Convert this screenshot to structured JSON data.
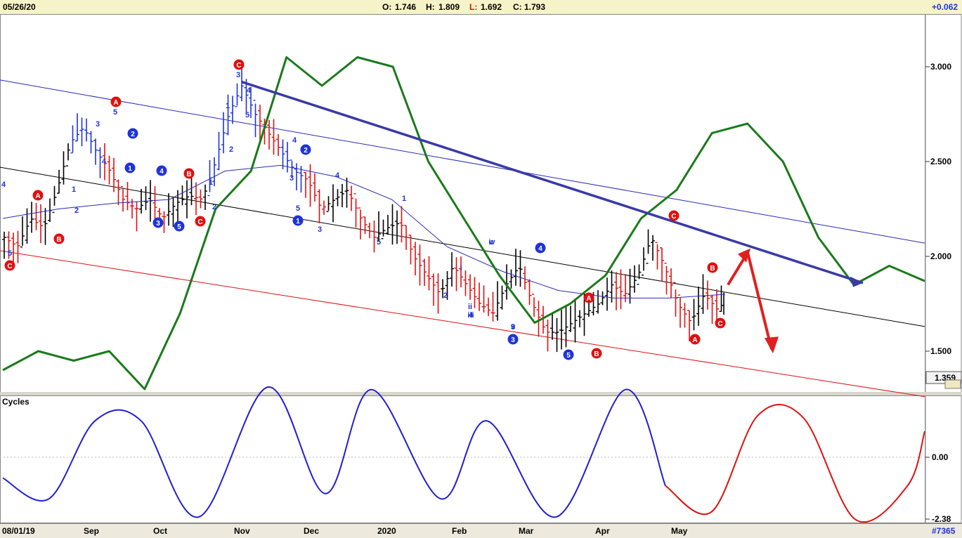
{
  "header": {
    "date": "05/26/20",
    "open_label": "O:",
    "open": "1.746",
    "high_label": "H:",
    "high": "1.809",
    "low_label": "L:",
    "low": "1.692",
    "close_label": "C:",
    "close": "1.793",
    "change": "+0.062"
  },
  "footer": {
    "start_date": "08/01/19",
    "months": [
      "Sep",
      "Oct",
      "Nov",
      "Dec",
      "2020",
      "Feb",
      "Mar",
      "Apr",
      "May"
    ],
    "chart_id": "#7365"
  },
  "colors": {
    "up_bars": "#000000",
    "down_bars": "#e01010",
    "wave_bars": "#1f33d9",
    "green_line": "#1a7a1a",
    "moving_average": "#2a2ab8",
    "channel_upper": "#2a2ab8",
    "channel_mid": "#000000",
    "channel_lower": "#e01010",
    "trend_arrow": "#3a3aa8",
    "forecast_arrows": "#e02020",
    "cycle_history": "#1f1fd0",
    "cycle_forecast": "#e01010",
    "wave_marker_blue": "#1f33d9",
    "wave_marker_red": "#e01010"
  },
  "price_panel": {
    "y_ticks": [
      "3.000",
      "2.500",
      "2.000",
      "1.500"
    ],
    "last_value_badge": "1.359"
  },
  "cycles_panel": {
    "title": "Cycles",
    "y_ticks": [
      "0.00",
      "-2.38"
    ]
  },
  "wave_labels": {
    "circle_red": [
      "C",
      "A",
      "B",
      "C",
      "A",
      "B",
      "C",
      "A",
      "B",
      "C",
      "B",
      "A",
      "C"
    ],
    "circle_blue": [
      "1",
      "2",
      "3",
      "4",
      "5",
      "1",
      "2",
      "3",
      "4",
      "5"
    ],
    "plain": [
      "4",
      "5",
      "1",
      "2",
      "3",
      "4",
      "5",
      "1",
      "2",
      "3",
      "4",
      "5",
      "1",
      "2",
      "3",
      "4",
      "5",
      "3",
      "4",
      "5",
      "1",
      "2",
      "i",
      "ii",
      "iii",
      "iv",
      "v",
      "v",
      "3",
      "4",
      "5"
    ]
  },
  "chart_data": [
    {
      "type": "ohlc",
      "y_axis_ticks": [
        3.0,
        2.5,
        2.0,
        1.5
      ],
      "ylim": [
        1.2,
        3.2
      ],
      "x_axis_labels": [
        "08/01/19",
        "Sep",
        "Oct",
        "Nov",
        "Dec",
        "2020",
        "Feb",
        "Mar",
        "Apr",
        "May"
      ],
      "last_bar": {
        "date": "05/26/20",
        "open": 1.746,
        "high": 1.809,
        "low": 1.692,
        "close": 1.793,
        "change": 0.062
      },
      "price_closes": [
        2.1,
        2.05,
        2.2,
        2.15,
        2.35,
        2.6,
        2.68,
        2.55,
        2.45,
        2.3,
        2.25,
        2.3,
        2.2,
        2.28,
        2.32,
        2.3,
        2.5,
        2.75,
        2.9,
        2.75,
        2.65,
        2.55,
        2.45,
        2.4,
        2.25,
        2.3,
        2.35,
        2.2,
        2.1,
        2.15,
        2.18,
        2.0,
        1.9,
        1.8,
        1.95,
        1.85,
        1.75,
        1.7,
        1.85,
        1.95,
        1.75,
        1.6,
        1.6,
        1.65,
        1.7,
        1.75,
        1.85,
        1.8,
        1.9,
        2.1,
        1.95,
        1.75,
        1.65,
        1.8,
        1.72,
        1.79
      ],
      "green_line_values": [
        1.4,
        1.5,
        1.45,
        1.5,
        1.3,
        1.7,
        2.25,
        2.45,
        3.05,
        2.9,
        3.05,
        3.0,
        2.5,
        2.2,
        1.9,
        1.65,
        1.75,
        1.9,
        2.2,
        2.35,
        2.65,
        2.7,
        2.5,
        2.1,
        1.85,
        1.95,
        1.87
      ],
      "moving_average_values": [
        2.2,
        2.25,
        2.28,
        2.3,
        2.45,
        2.48,
        2.42,
        2.3,
        2.05,
        1.92,
        1.82,
        1.78,
        1.78,
        1.8
      ],
      "channels": [
        {
          "name": "upper",
          "start": 2.93,
          "end": 2.07
        },
        {
          "name": "middle",
          "start": 2.47,
          "end": 1.63
        },
        {
          "name": "lower",
          "start": 2.03,
          "end": 1.26
        }
      ],
      "trend_arrow": {
        "start": 2.92,
        "end": 1.86
      },
      "forecast_arrows": [
        {
          "start": 1.85,
          "end": 2.02
        },
        {
          "start": 2.02,
          "end": 1.51
        }
      ]
    },
    {
      "type": "line",
      "title": "Cycles",
      "y_axis_ticks": [
        0.0,
        -2.38
      ],
      "series": [
        {
          "role": "history",
          "points": [
            [
              0,
              -0.8
            ],
            [
              8,
              -1.6
            ],
            [
              16,
              1.4
            ],
            [
              24,
              1.4
            ],
            [
              34,
              -2.3
            ],
            [
              46,
              2.7
            ],
            [
              56,
              -1.4
            ],
            [
              64,
              2.6
            ],
            [
              76,
              -1.6
            ],
            [
              84,
              1.4
            ],
            [
              96,
              -2.3
            ],
            [
              108,
              2.6
            ],
            [
              115,
              -1.1
            ]
          ]
        },
        {
          "role": "forecast",
          "points": [
            [
              115,
              -1.1
            ],
            [
              123,
              -2.1
            ],
            [
              131,
              1.6
            ],
            [
              139,
              1.5
            ],
            [
              148,
              -2.4
            ],
            [
              157,
              -1.1
            ],
            [
              160,
              1.0
            ]
          ]
        }
      ]
    }
  ]
}
